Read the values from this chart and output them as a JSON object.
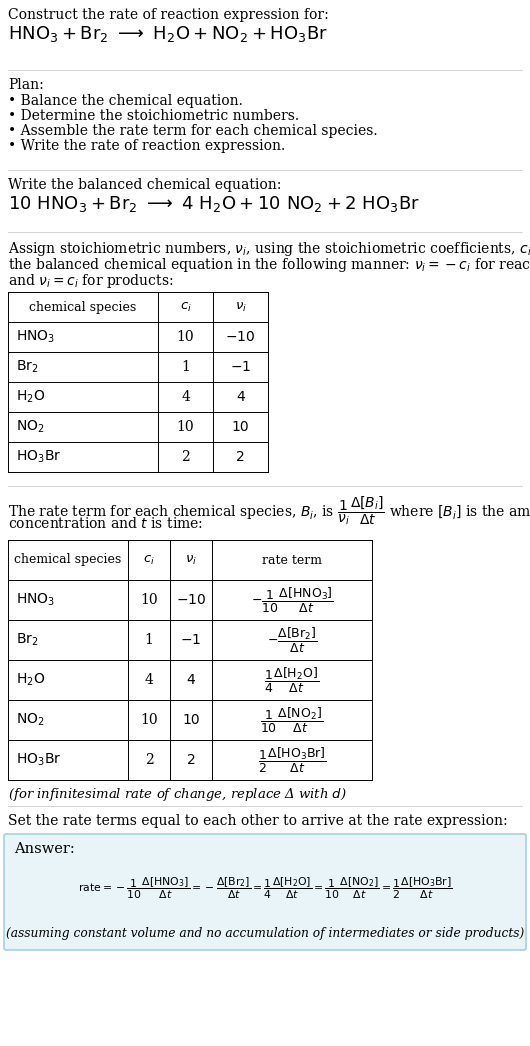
{
  "bg_color": "#ffffff",
  "title_line1": "Construct the rate of reaction expression for:",
  "plan_header": "Plan:",
  "plan_items": [
    "• Balance the chemical equation.",
    "• Determine the stoichiometric numbers.",
    "• Assemble the rate term for each chemical species.",
    "• Write the rate of reaction expression."
  ],
  "balanced_header": "Write the balanced chemical equation:",
  "assign_para": "Assign stoichiometric numbers, $\\nu_i$, using the stoichiometric coefficients, $c_i$, from\nthe balanced chemical equation in the following manner: $\\nu_i = -c_i$ for reactants\nand $\\nu_i = c_i$ for products:",
  "table1_species": [
    "$\\mathrm{HNO_3}$",
    "$\\mathrm{Br_2}$",
    "$\\mathrm{H_2O}$",
    "$\\mathrm{NO_2}$",
    "$\\mathrm{HO_3Br}$"
  ],
  "table1_ci": [
    "10",
    "1",
    "4",
    "10",
    "2"
  ],
  "table1_vi": [
    "$-10$",
    "$-1$",
    "4",
    "10",
    "2"
  ],
  "rate_para1": "The rate term for each chemical species, $B_i$, is $\\dfrac{1}{\\nu_i}\\dfrac{\\Delta[B_i]}{\\Delta t}$ where $[B_i]$ is the amount",
  "rate_para2": "concentration and $t$ is time:",
  "table2_species": [
    "$\\mathrm{HNO_3}$",
    "$\\mathrm{Br_2}$",
    "$\\mathrm{H_2O}$",
    "$\\mathrm{NO_2}$",
    "$\\mathrm{HO_3Br}$"
  ],
  "table2_ci": [
    "10",
    "1",
    "4",
    "10",
    "2"
  ],
  "table2_vi": [
    "$-10$",
    "$-1$",
    "4",
    "10",
    "2"
  ],
  "table2_rate": [
    "$-\\dfrac{1}{10}\\dfrac{\\Delta[\\mathrm{HNO_3}]}{\\Delta t}$",
    "$-\\dfrac{\\Delta[\\mathrm{Br_2}]}{\\Delta t}$",
    "$\\dfrac{1}{4}\\dfrac{\\Delta[\\mathrm{H_2O}]}{\\Delta t}$",
    "$\\dfrac{1}{10}\\dfrac{\\Delta[\\mathrm{NO_2}]}{\\Delta t}$",
    "$\\dfrac{1}{2}\\dfrac{\\Delta[\\mathrm{HO_3Br}]}{\\Delta t}$"
  ],
  "infinitesimal_note": "(for infinitesimal rate of change, replace Δ with $d$)",
  "set_equal_text": "Set the rate terms equal to each other to arrive at the rate expression:",
  "answer_label": "Answer:",
  "answer_bg": "#e8f4f8",
  "answer_border": "#a8cfe0",
  "footnote": "(assuming constant volume and no accumulation of intermediates or side products)",
  "separator_color": "#cccccc",
  "font_family": "DejaVu Serif"
}
